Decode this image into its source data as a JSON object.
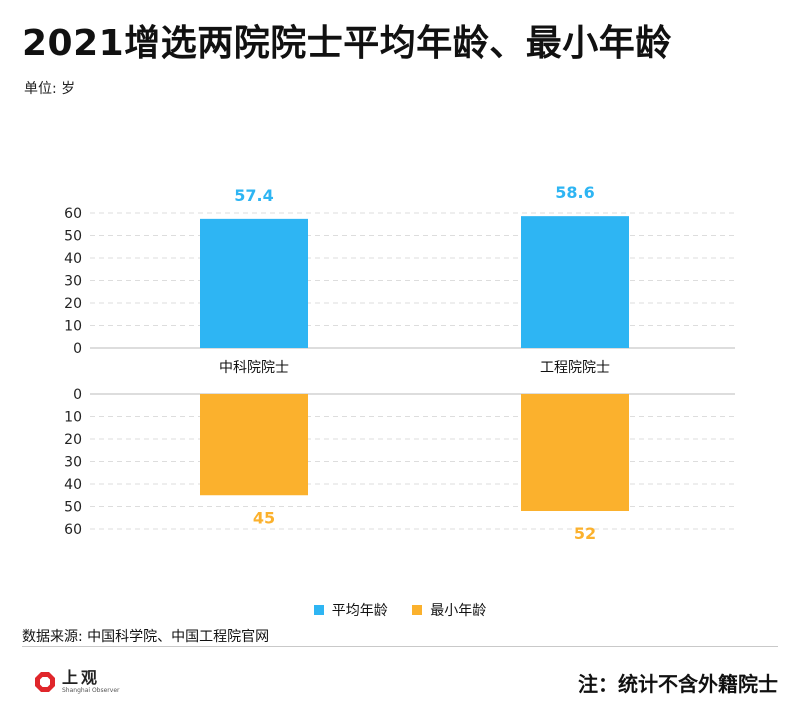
{
  "title": "2021增选两院院士平均年龄、最小年龄",
  "unit": "单位: 岁",
  "source": "数据来源: 中国科学院、中国工程院官网",
  "note": "注：统计不含外籍院士",
  "logo": {
    "cn": "上观",
    "en": "Shanghai Observer"
  },
  "colors": {
    "avg": "#2EB5F3",
    "min": "#FBB12D",
    "grid": "#dddddd"
  },
  "chart_data": {
    "type": "bar",
    "categories": [
      "中科院院士",
      "工程院院士"
    ],
    "series": [
      {
        "name": "平均年龄",
        "values": [
          57.4,
          58.6
        ],
        "labels": [
          "57.4",
          "58.6"
        ],
        "color": "#2EB5F3"
      },
      {
        "name": "最小年龄",
        "values": [
          45,
          52
        ],
        "labels": [
          "45",
          "52"
        ],
        "color": "#FBB12D"
      }
    ],
    "ylim": [
      0,
      60
    ],
    "yticks": [
      "0",
      "10",
      "20",
      "30",
      "40",
      "50",
      "60"
    ],
    "grid": true,
    "legend": "bottom-center"
  }
}
